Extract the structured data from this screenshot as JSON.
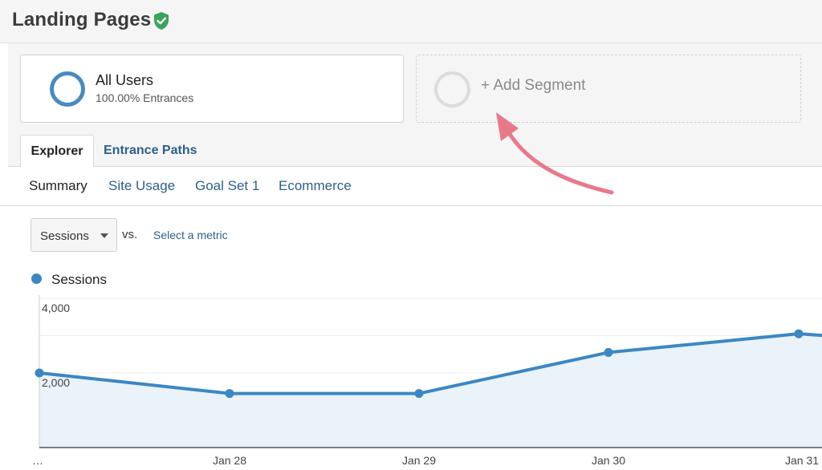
{
  "header": {
    "title": "Landing Pages"
  },
  "segments": {
    "active": {
      "name": "All Users",
      "subtitle": "100.00% Entrances"
    },
    "add_label": "+ Add Segment"
  },
  "tabs": [
    {
      "label": "Explorer",
      "active": true
    },
    {
      "label": "Entrance Paths",
      "active": false
    }
  ],
  "subnav": {
    "summary": "Summary",
    "site_usage": "Site Usage",
    "goal_set": "Goal Set 1",
    "ecommerce": "Ecommerce"
  },
  "metric": {
    "selected": "Sessions",
    "vs": "vs.",
    "compare_link": "Select a metric"
  },
  "legend": {
    "series": "Sessions"
  },
  "colors": {
    "series": "#3b87c3",
    "fill": "#eaf2fa",
    "link": "#2e5f8a",
    "arrow": "#e8798a",
    "verified": "#3aa35b"
  },
  "chart_data": {
    "type": "area",
    "x": [
      "…",
      "Jan 28",
      "Jan 29",
      "Jan 30",
      "Jan 31"
    ],
    "series": [
      {
        "name": "Sessions",
        "values": [
          2000,
          1450,
          1450,
          2550,
          3050
        ]
      }
    ],
    "ylim": [
      0,
      4000
    ],
    "yticks": [
      "4,000",
      "2,000"
    ],
    "grid": true
  }
}
